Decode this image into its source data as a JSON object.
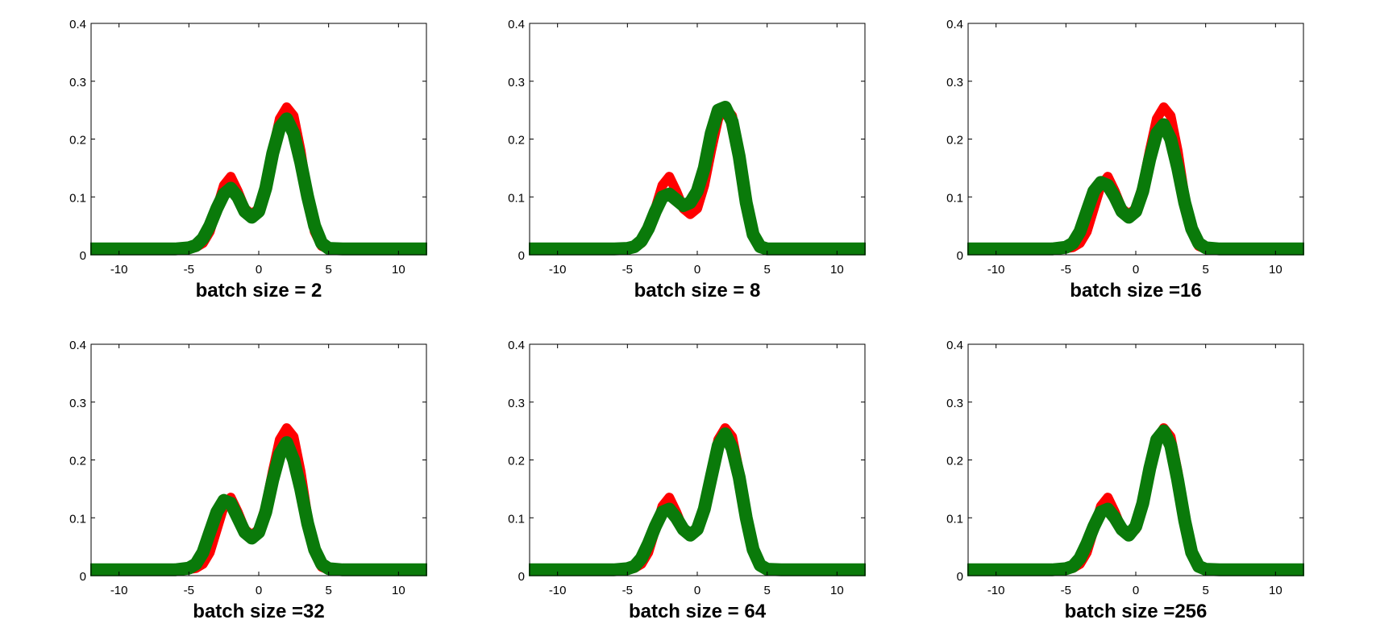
{
  "chart_data": [
    {
      "type": "line",
      "xlabel": "batch size = 2",
      "xlim": [
        -12,
        12
      ],
      "ylim": [
        0,
        0.4
      ],
      "xticks": [
        -10,
        -5,
        0,
        5,
        10
      ],
      "yticks": [
        0,
        0.1,
        0.2,
        0.3,
        0.4
      ],
      "xtick_labels": [
        "-10",
        "-5",
        "0",
        "5",
        "10"
      ],
      "ytick_labels": [
        "0",
        "0.1",
        "0.2",
        "0.3",
        "0.4"
      ],
      "grid": false,
      "series": [
        {
          "color": "#ff0000",
          "x": [
            -12,
            -10,
            -8,
            -6,
            -5,
            -4.5,
            -4,
            -3.5,
            -3,
            -2.5,
            -2,
            -1.5,
            -1,
            -0.5,
            0,
            0.5,
            1,
            1.5,
            2,
            2.5,
            3,
            3.5,
            4,
            4.5,
            5,
            6,
            8,
            10,
            12
          ],
          "y": [
            0.01,
            0.01,
            0.01,
            0.01,
            0.011,
            0.013,
            0.02,
            0.04,
            0.08,
            0.12,
            0.135,
            0.11,
            0.08,
            0.07,
            0.08,
            0.12,
            0.18,
            0.235,
            0.255,
            0.24,
            0.18,
            0.1,
            0.04,
            0.015,
            0.01,
            0.01,
            0.01,
            0.01,
            0.01
          ]
        },
        {
          "color": "#0a7a0a",
          "x": [
            -12,
            -10,
            -8,
            -6,
            -5,
            -4.5,
            -4,
            -3.5,
            -3,
            -2.5,
            -2,
            -1.5,
            -1,
            -0.5,
            0,
            0.5,
            1,
            1.5,
            2,
            2.5,
            3,
            3.5,
            4,
            4.5,
            5,
            6,
            8,
            10,
            12
          ],
          "y": [
            0.01,
            0.01,
            0.01,
            0.01,
            0.012,
            0.016,
            0.028,
            0.05,
            0.08,
            0.105,
            0.115,
            0.1,
            0.075,
            0.065,
            0.075,
            0.115,
            0.175,
            0.22,
            0.235,
            0.21,
            0.16,
            0.1,
            0.05,
            0.02,
            0.011,
            0.01,
            0.01,
            0.01,
            0.01
          ]
        }
      ]
    },
    {
      "type": "line",
      "xlabel": "batch size = 8",
      "xlim": [
        -12,
        12
      ],
      "ylim": [
        0,
        0.4
      ],
      "xticks": [
        -10,
        -5,
        0,
        5,
        10
      ],
      "yticks": [
        0,
        0.1,
        0.2,
        0.3,
        0.4
      ],
      "xtick_labels": [
        "-10",
        "-5",
        "0",
        "5",
        "10"
      ],
      "ytick_labels": [
        "0",
        "0.1",
        "0.2",
        "0.3",
        "0.4"
      ],
      "grid": false,
      "series": [
        {
          "color": "#ff0000",
          "x": [
            -12,
            -10,
            -8,
            -6,
            -5,
            -4.5,
            -4,
            -3.5,
            -3,
            -2.5,
            -2,
            -1.5,
            -1,
            -0.5,
            0,
            0.5,
            1,
            1.5,
            2,
            2.5,
            3,
            3.5,
            4,
            4.5,
            5,
            6,
            8,
            10,
            12
          ],
          "y": [
            0.01,
            0.01,
            0.01,
            0.01,
            0.011,
            0.013,
            0.02,
            0.04,
            0.08,
            0.12,
            0.135,
            0.11,
            0.08,
            0.07,
            0.08,
            0.12,
            0.18,
            0.235,
            0.255,
            0.24,
            0.18,
            0.1,
            0.04,
            0.015,
            0.01,
            0.01,
            0.01,
            0.01,
            0.01
          ]
        },
        {
          "color": "#0a7a0a",
          "x": [
            -12,
            -10,
            -8,
            -6,
            -5,
            -4.5,
            -4,
            -3.5,
            -3,
            -2.5,
            -2,
            -1.5,
            -1,
            -0.5,
            0,
            0.5,
            1,
            1.5,
            2,
            2.5,
            3,
            3.5,
            4,
            4.5,
            5,
            6,
            8,
            10,
            12
          ],
          "y": [
            0.01,
            0.01,
            0.01,
            0.01,
            0.011,
            0.014,
            0.024,
            0.045,
            0.075,
            0.1,
            0.105,
            0.095,
            0.085,
            0.09,
            0.11,
            0.15,
            0.21,
            0.25,
            0.255,
            0.23,
            0.17,
            0.09,
            0.035,
            0.014,
            0.01,
            0.01,
            0.01,
            0.01,
            0.01
          ]
        }
      ]
    },
    {
      "type": "line",
      "xlabel": "batch size =16",
      "xlim": [
        -12,
        12
      ],
      "ylim": [
        0,
        0.4
      ],
      "xticks": [
        -10,
        -5,
        0,
        5,
        10
      ],
      "yticks": [
        0,
        0.1,
        0.2,
        0.3,
        0.4
      ],
      "xtick_labels": [
        "-10",
        "-5",
        "0",
        "5",
        "10"
      ],
      "ytick_labels": [
        "0",
        "0.1",
        "0.2",
        "0.3",
        "0.4"
      ],
      "grid": false,
      "series": [
        {
          "color": "#ff0000",
          "x": [
            -12,
            -10,
            -8,
            -6,
            -5,
            -4.5,
            -4,
            -3.5,
            -3,
            -2.5,
            -2,
            -1.5,
            -1,
            -0.5,
            0,
            0.5,
            1,
            1.5,
            2,
            2.5,
            3,
            3.5,
            4,
            4.5,
            5,
            6,
            8,
            10,
            12
          ],
          "y": [
            0.01,
            0.01,
            0.01,
            0.01,
            0.011,
            0.013,
            0.02,
            0.04,
            0.08,
            0.12,
            0.135,
            0.11,
            0.08,
            0.07,
            0.08,
            0.12,
            0.18,
            0.235,
            0.255,
            0.24,
            0.18,
            0.1,
            0.04,
            0.015,
            0.01,
            0.01,
            0.01,
            0.01,
            0.01
          ]
        },
        {
          "color": "#0a7a0a",
          "x": [
            -12,
            -10,
            -8,
            -6,
            -5,
            -4.5,
            -4,
            -3.5,
            -3,
            -2.5,
            -2,
            -1.5,
            -1,
            -0.5,
            0,
            0.5,
            1,
            1.5,
            2,
            2.5,
            3,
            3.5,
            4,
            4.5,
            5,
            6,
            8,
            10,
            12
          ],
          "y": [
            0.01,
            0.01,
            0.01,
            0.01,
            0.013,
            0.02,
            0.04,
            0.075,
            0.11,
            0.125,
            0.12,
            0.1,
            0.075,
            0.065,
            0.075,
            0.11,
            0.165,
            0.21,
            0.225,
            0.2,
            0.15,
            0.09,
            0.045,
            0.02,
            0.012,
            0.01,
            0.01,
            0.01,
            0.01
          ]
        }
      ]
    },
    {
      "type": "line",
      "xlabel": "batch size =32",
      "xlim": [
        -12,
        12
      ],
      "ylim": [
        0,
        0.4
      ],
      "xticks": [
        -10,
        -5,
        0,
        5,
        10
      ],
      "yticks": [
        0,
        0.1,
        0.2,
        0.3,
        0.4
      ],
      "xtick_labels": [
        "-10",
        "-5",
        "0",
        "5",
        "10"
      ],
      "ytick_labels": [
        "0",
        "0.1",
        "0.2",
        "0.3",
        "0.4"
      ],
      "grid": false,
      "series": [
        {
          "color": "#ff0000",
          "x": [
            -12,
            -10,
            -8,
            -6,
            -5,
            -4.5,
            -4,
            -3.5,
            -3,
            -2.5,
            -2,
            -1.5,
            -1,
            -0.5,
            0,
            0.5,
            1,
            1.5,
            2,
            2.5,
            3,
            3.5,
            4,
            4.5,
            5,
            6,
            8,
            10,
            12
          ],
          "y": [
            0.01,
            0.01,
            0.01,
            0.01,
            0.011,
            0.013,
            0.02,
            0.04,
            0.08,
            0.12,
            0.135,
            0.11,
            0.08,
            0.07,
            0.08,
            0.12,
            0.18,
            0.235,
            0.255,
            0.24,
            0.18,
            0.1,
            0.04,
            0.015,
            0.01,
            0.01,
            0.01,
            0.01,
            0.01
          ]
        },
        {
          "color": "#0a7a0a",
          "x": [
            -12,
            -10,
            -8,
            -6,
            -5,
            -4.5,
            -4,
            -3.5,
            -3,
            -2.5,
            -2,
            -1.5,
            -1,
            -0.5,
            0,
            0.5,
            1,
            1.5,
            2,
            2.5,
            3,
            3.5,
            4,
            4.5,
            5,
            6,
            8,
            10,
            12
          ],
          "y": [
            0.01,
            0.01,
            0.01,
            0.01,
            0.013,
            0.02,
            0.04,
            0.075,
            0.11,
            0.13,
            0.125,
            0.1,
            0.075,
            0.065,
            0.075,
            0.11,
            0.165,
            0.21,
            0.23,
            0.2,
            0.15,
            0.09,
            0.045,
            0.02,
            0.012,
            0.01,
            0.01,
            0.01,
            0.01
          ]
        }
      ]
    },
    {
      "type": "line",
      "xlabel": "batch size = 64",
      "xlim": [
        -12,
        12
      ],
      "ylim": [
        0,
        0.4
      ],
      "xticks": [
        -10,
        -5,
        0,
        5,
        10
      ],
      "yticks": [
        0,
        0.1,
        0.2,
        0.3,
        0.4
      ],
      "xtick_labels": [
        "-10",
        "-5",
        "0",
        "5",
        "10"
      ],
      "ytick_labels": [
        "0",
        "0.1",
        "0.2",
        "0.3",
        "0.4"
      ],
      "grid": false,
      "series": [
        {
          "color": "#ff0000",
          "x": [
            -12,
            -10,
            -8,
            -6,
            -5,
            -4.5,
            -4,
            -3.5,
            -3,
            -2.5,
            -2,
            -1.5,
            -1,
            -0.5,
            0,
            0.5,
            1,
            1.5,
            2,
            2.5,
            3,
            3.5,
            4,
            4.5,
            5,
            6,
            8,
            10,
            12
          ],
          "y": [
            0.01,
            0.01,
            0.01,
            0.01,
            0.011,
            0.013,
            0.02,
            0.04,
            0.08,
            0.12,
            0.135,
            0.11,
            0.08,
            0.07,
            0.08,
            0.12,
            0.18,
            0.235,
            0.255,
            0.24,
            0.18,
            0.1,
            0.04,
            0.015,
            0.01,
            0.01,
            0.01,
            0.01,
            0.01
          ]
        },
        {
          "color": "#0a7a0a",
          "x": [
            -12,
            -10,
            -8,
            -6,
            -5,
            -4.5,
            -4,
            -3.5,
            -3,
            -2.5,
            -2,
            -1.5,
            -1,
            -0.5,
            0,
            0.5,
            1,
            1.5,
            2,
            2.5,
            3,
            3.5,
            4,
            4.5,
            5,
            6,
            8,
            10,
            12
          ],
          "y": [
            0.01,
            0.01,
            0.01,
            0.01,
            0.012,
            0.016,
            0.03,
            0.055,
            0.085,
            0.11,
            0.115,
            0.1,
            0.08,
            0.07,
            0.08,
            0.115,
            0.17,
            0.225,
            0.245,
            0.22,
            0.17,
            0.1,
            0.045,
            0.018,
            0.011,
            0.01,
            0.01,
            0.01,
            0.01
          ]
        }
      ]
    },
    {
      "type": "line",
      "xlabel": "batch size =256",
      "xlim": [
        -12,
        12
      ],
      "ylim": [
        0,
        0.4
      ],
      "xticks": [
        -10,
        -5,
        0,
        5,
        10
      ],
      "yticks": [
        0,
        0.1,
        0.2,
        0.3,
        0.4
      ],
      "xtick_labels": [
        "-10",
        "-5",
        "0",
        "5",
        "10"
      ],
      "ytick_labels": [
        "0",
        "0.1",
        "0.2",
        "0.3",
        "0.4"
      ],
      "grid": false,
      "series": [
        {
          "color": "#ff0000",
          "x": [
            -12,
            -10,
            -8,
            -6,
            -5,
            -4.5,
            -4,
            -3.5,
            -3,
            -2.5,
            -2,
            -1.5,
            -1,
            -0.5,
            0,
            0.5,
            1,
            1.5,
            2,
            2.5,
            3,
            3.5,
            4,
            4.5,
            5,
            6,
            8,
            10,
            12
          ],
          "y": [
            0.01,
            0.01,
            0.01,
            0.01,
            0.011,
            0.013,
            0.02,
            0.04,
            0.08,
            0.12,
            0.135,
            0.11,
            0.08,
            0.07,
            0.08,
            0.12,
            0.18,
            0.235,
            0.255,
            0.24,
            0.18,
            0.1,
            0.04,
            0.015,
            0.01,
            0.01,
            0.01,
            0.01,
            0.01
          ]
        },
        {
          "color": "#0a7a0a",
          "x": [
            -12,
            -10,
            -8,
            -6,
            -5,
            -4.5,
            -4,
            -3.5,
            -3,
            -2.5,
            -2,
            -1.5,
            -1,
            -0.5,
            0,
            0.5,
            1,
            1.5,
            2,
            2.5,
            3,
            3.5,
            4,
            4.5,
            5,
            6,
            8,
            10,
            12
          ],
          "y": [
            0.01,
            0.01,
            0.01,
            0.01,
            0.012,
            0.016,
            0.03,
            0.055,
            0.085,
            0.11,
            0.115,
            0.1,
            0.08,
            0.07,
            0.085,
            0.125,
            0.185,
            0.235,
            0.25,
            0.225,
            0.165,
            0.095,
            0.04,
            0.016,
            0.011,
            0.01,
            0.01,
            0.01,
            0.01
          ]
        }
      ]
    }
  ]
}
